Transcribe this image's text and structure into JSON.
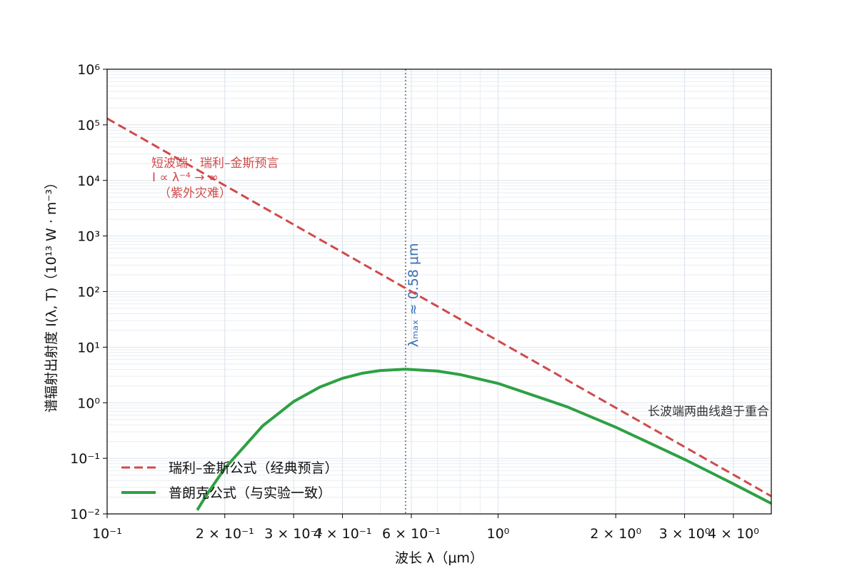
{
  "chart_data": {
    "type": "line",
    "x_label": "波长 λ（μm）",
    "y_label": "谱辐射出射度 I(λ, T)（10¹³ W · m⁻³）",
    "xscale": "log",
    "yscale": "log",
    "grid": true,
    "minor_grid": true,
    "xlim": [
      0.1,
      5
    ],
    "ylim": [
      0.01,
      1000000
    ],
    "xticks": [
      {
        "value": 0.1,
        "label": "10⁻¹"
      },
      {
        "value": 0.2,
        "label": "2 × 10⁻¹"
      },
      {
        "value": 0.3,
        "label": "3 × 10⁻¹"
      },
      {
        "value": 0.4,
        "label": "4 × 10⁻¹"
      },
      {
        "value": 0.6,
        "label": "6 × 10⁻¹"
      },
      {
        "value": 1,
        "label": "10⁰"
      },
      {
        "value": 2,
        "label": "2 × 10⁰"
      },
      {
        "value": 3,
        "label": "3 × 10⁰"
      },
      {
        "value": 4,
        "label": "4 × 10⁰"
      }
    ],
    "yticks": [
      {
        "value": 0.01,
        "label": "10⁻²"
      },
      {
        "value": 0.1,
        "label": "10⁻¹"
      },
      {
        "value": 1,
        "label": "10⁰"
      },
      {
        "value": 10,
        "label": "10¹"
      },
      {
        "value": 100,
        "label": "10²"
      },
      {
        "value": 1000,
        "label": "10³"
      },
      {
        "value": 10000,
        "label": "10⁴"
      },
      {
        "value": 100000,
        "label": "10⁵"
      },
      {
        "value": 1000000,
        "label": "10⁶"
      }
    ],
    "legend": "lower left",
    "series": [
      {
        "name": "瑞利–金斯公式（经典预言）",
        "color": "#d04a4a",
        "dashed": true,
        "width": 3,
        "x": [
          0.1,
          5
        ],
        "values": [
          130000,
          0.0208
        ]
      },
      {
        "name": "普朗克公式（与实验一致）",
        "color": "#2ea043",
        "dashed": false,
        "width": 4,
        "x": [
          0.17,
          0.18,
          0.2,
          0.25,
          0.3,
          0.35,
          0.4,
          0.45,
          0.5,
          0.58,
          0.7,
          0.8,
          1,
          1.5,
          2,
          3,
          4,
          5
        ],
        "values": [
          0.0117,
          0.0225,
          0.066,
          0.384,
          1.05,
          1.91,
          2.75,
          3.4,
          3.8,
          4.02,
          3.71,
          3.21,
          2.23,
          0.848,
          0.363,
          0.0956,
          0.0347,
          0.0154
        ]
      }
    ],
    "peak": {
      "x": 0.58,
      "label": "λₘₐₓ ≈ 0.58 μm",
      "color": "#3a6fb5"
    },
    "annotations": [
      {
        "lines": [
          "短波端：瑞利–金斯预言",
          "I ∝ λ⁻⁴ → ∞",
          "（紫外灾难）"
        ],
        "color": "#d04a4a"
      },
      {
        "lines": [
          "长波端两曲线趋于重合"
        ],
        "color": "#333333"
      }
    ]
  }
}
